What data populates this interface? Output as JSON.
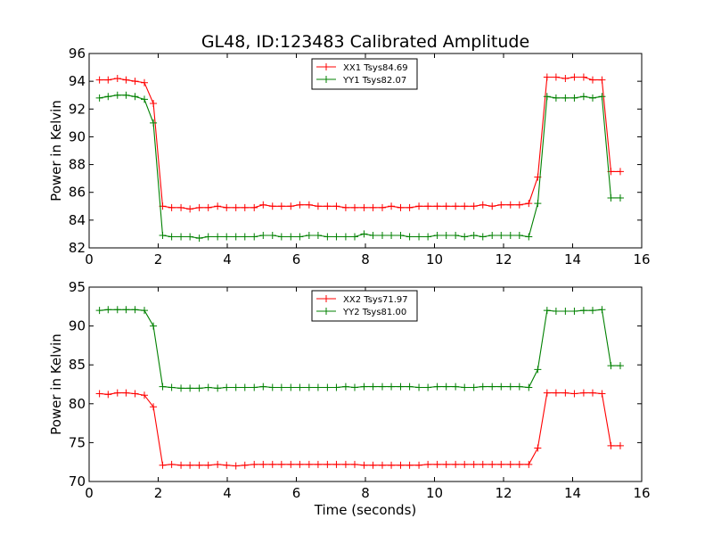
{
  "figure": {
    "title": "GL48, ID:123483 Calibrated Amplitude"
  },
  "chart_data": [
    {
      "type": "line",
      "title": "GL48, ID:123483 Calibrated Amplitude",
      "xlabel": "",
      "ylabel": "Power in Kelvin",
      "xlim": [
        0,
        16
      ],
      "ylim": [
        82,
        96
      ],
      "xticks": [
        "0",
        "2",
        "4",
        "6",
        "8",
        "10",
        "12",
        "14",
        "16"
      ],
      "yticks": [
        "82",
        "84",
        "86",
        "88",
        "90",
        "92",
        "94",
        "96"
      ],
      "grid": false,
      "legend_position": "top-center",
      "x": [
        0.3,
        0.55,
        0.82,
        1.07,
        1.33,
        1.6,
        1.86,
        2.13,
        2.39,
        2.66,
        2.92,
        3.19,
        3.45,
        3.72,
        3.98,
        4.25,
        4.51,
        4.78,
        5.04,
        5.31,
        5.57,
        5.84,
        6.1,
        6.37,
        6.63,
        6.9,
        7.16,
        7.43,
        7.69,
        7.96,
        8.22,
        8.49,
        8.75,
        9.02,
        9.28,
        9.55,
        9.81,
        10.08,
        10.34,
        10.61,
        10.87,
        11.14,
        11.4,
        11.67,
        11.93,
        12.2,
        12.46,
        12.73,
        12.99,
        13.26,
        13.52,
        13.79,
        14.05,
        14.32,
        14.58,
        14.85,
        15.11,
        15.38
      ],
      "series": [
        {
          "name": "XX1 Tsys84.69",
          "color": "#ff0000",
          "values": [
            94.1,
            94.1,
            94.2,
            94.1,
            94.0,
            93.9,
            92.4,
            85.0,
            84.9,
            84.9,
            84.8,
            84.9,
            84.9,
            85.0,
            84.9,
            84.9,
            84.9,
            84.9,
            85.1,
            85.0,
            85.0,
            85.0,
            85.1,
            85.1,
            85.0,
            85.0,
            85.0,
            84.9,
            84.9,
            84.9,
            84.9,
            84.9,
            85.0,
            84.9,
            84.9,
            85.0,
            85.0,
            85.0,
            85.0,
            85.0,
            85.0,
            85.0,
            85.1,
            85.0,
            85.1,
            85.1,
            85.1,
            85.2,
            87.1,
            94.3,
            94.3,
            94.2,
            94.3,
            94.3,
            94.1,
            94.1,
            87.5,
            87.5
          ]
        },
        {
          "name": "YY1 Tsys82.07",
          "color": "#008000",
          "values": [
            92.8,
            92.9,
            93.0,
            93.0,
            92.9,
            92.7,
            91.0,
            82.9,
            82.8,
            82.8,
            82.8,
            82.7,
            82.8,
            82.8,
            82.8,
            82.8,
            82.8,
            82.8,
            82.9,
            82.9,
            82.8,
            82.8,
            82.8,
            82.9,
            82.9,
            82.8,
            82.8,
            82.8,
            82.8,
            83.0,
            82.9,
            82.9,
            82.9,
            82.9,
            82.8,
            82.8,
            82.8,
            82.9,
            82.9,
            82.9,
            82.8,
            82.9,
            82.8,
            82.9,
            82.9,
            82.9,
            82.9,
            82.8,
            85.2,
            92.9,
            92.8,
            92.8,
            92.8,
            92.9,
            92.8,
            92.9,
            85.6,
            85.6
          ]
        }
      ]
    },
    {
      "type": "line",
      "title": "",
      "xlabel": "Time (seconds)",
      "ylabel": "Power in Kelvin",
      "xlim": [
        0,
        16
      ],
      "ylim": [
        70,
        95
      ],
      "xticks": [
        "0",
        "2",
        "4",
        "6",
        "8",
        "10",
        "12",
        "14",
        "16"
      ],
      "yticks": [
        "70",
        "75",
        "80",
        "85",
        "90",
        "95"
      ],
      "grid": false,
      "legend_position": "top-center",
      "x": [
        0.3,
        0.55,
        0.82,
        1.07,
        1.33,
        1.6,
        1.86,
        2.13,
        2.39,
        2.66,
        2.92,
        3.19,
        3.45,
        3.72,
        3.98,
        4.25,
        4.51,
        4.78,
        5.04,
        5.31,
        5.57,
        5.84,
        6.1,
        6.37,
        6.63,
        6.9,
        7.16,
        7.43,
        7.69,
        7.96,
        8.22,
        8.49,
        8.75,
        9.02,
        9.28,
        9.55,
        9.81,
        10.08,
        10.34,
        10.61,
        10.87,
        11.14,
        11.4,
        11.67,
        11.93,
        12.2,
        12.46,
        12.73,
        12.99,
        13.26,
        13.52,
        13.79,
        14.05,
        14.32,
        14.58,
        14.85,
        15.11,
        15.38
      ],
      "series": [
        {
          "name": "XX2 Tsys71.97",
          "color": "#ff0000",
          "values": [
            81.3,
            81.2,
            81.4,
            81.4,
            81.3,
            81.1,
            79.6,
            72.1,
            72.2,
            72.1,
            72.1,
            72.1,
            72.1,
            72.2,
            72.1,
            72.0,
            72.1,
            72.2,
            72.2,
            72.2,
            72.2,
            72.2,
            72.2,
            72.2,
            72.2,
            72.2,
            72.2,
            72.2,
            72.2,
            72.1,
            72.1,
            72.1,
            72.1,
            72.1,
            72.1,
            72.1,
            72.2,
            72.2,
            72.2,
            72.2,
            72.2,
            72.2,
            72.2,
            72.2,
            72.2,
            72.2,
            72.2,
            72.2,
            74.3,
            81.4,
            81.4,
            81.4,
            81.3,
            81.4,
            81.4,
            81.3,
            74.6,
            74.6
          ]
        },
        {
          "name": "YY2 Tsys81.00",
          "color": "#008000",
          "values": [
            92.0,
            92.1,
            92.1,
            92.1,
            92.1,
            92.0,
            90.0,
            82.2,
            82.1,
            82.0,
            82.0,
            82.0,
            82.1,
            82.0,
            82.1,
            82.1,
            82.1,
            82.1,
            82.2,
            82.1,
            82.1,
            82.1,
            82.1,
            82.1,
            82.1,
            82.1,
            82.1,
            82.2,
            82.1,
            82.2,
            82.2,
            82.2,
            82.2,
            82.2,
            82.2,
            82.1,
            82.1,
            82.2,
            82.2,
            82.2,
            82.1,
            82.1,
            82.2,
            82.2,
            82.2,
            82.2,
            82.2,
            82.1,
            84.4,
            92.0,
            91.9,
            91.9,
            91.9,
            92.0,
            92.0,
            92.1,
            84.9,
            84.9
          ]
        }
      ]
    }
  ]
}
